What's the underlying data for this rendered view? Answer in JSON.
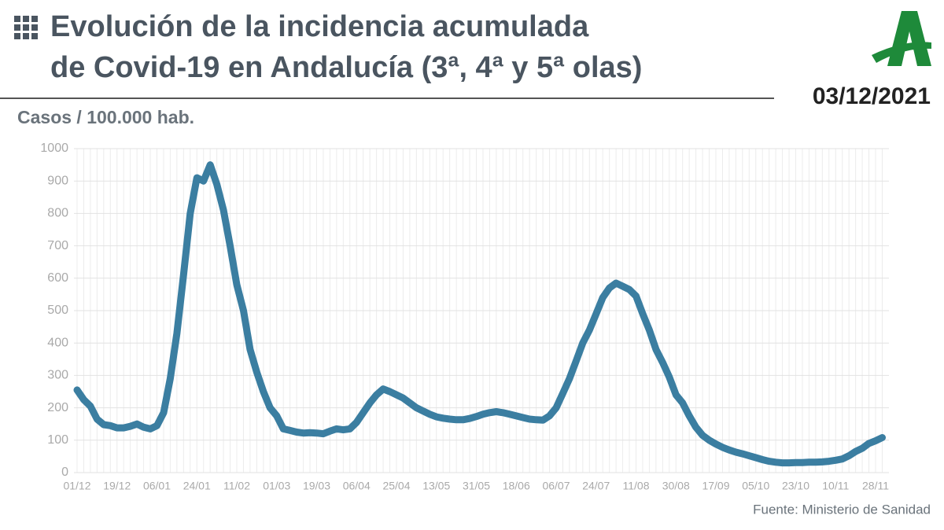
{
  "chart_data": {
    "type": "line",
    "title": [
      "Evolución de la incidencia acumulada",
      "de Covid-19 en Andalucía (3ª, 4ª y 5ª olas)"
    ],
    "date": "03/12/2021",
    "y_label": "Casos / 100.000 hab.",
    "source": "Fuente: Ministerio de Sanidad",
    "color": "#3b7ea1",
    "grid": true,
    "ylim": [
      0,
      1000
    ],
    "yticks": [
      0,
      100,
      200,
      300,
      400,
      500,
      600,
      700,
      800,
      900,
      1000
    ],
    "categories": [
      "01/12",
      null,
      null,
      null,
      null,
      null,
      "19/12",
      null,
      null,
      null,
      null,
      null,
      "06/01",
      null,
      null,
      null,
      null,
      null,
      "24/01",
      null,
      null,
      null,
      null,
      null,
      "11/02",
      null,
      null,
      null,
      null,
      null,
      "01/03",
      null,
      null,
      null,
      null,
      null,
      "19/03",
      null,
      null,
      null,
      null,
      null,
      "06/04",
      null,
      null,
      null,
      null,
      null,
      "25/04",
      null,
      null,
      null,
      null,
      null,
      "13/05",
      null,
      null,
      null,
      null,
      null,
      "31/05",
      null,
      null,
      null,
      null,
      null,
      "18/06",
      null,
      null,
      null,
      null,
      null,
      "06/07",
      null,
      null,
      null,
      null,
      null,
      "24/07",
      null,
      null,
      null,
      null,
      null,
      "11/08",
      null,
      null,
      null,
      null,
      null,
      "30/08",
      null,
      null,
      null,
      null,
      null,
      "17/09",
      null,
      null,
      null,
      null,
      null,
      "05/10",
      null,
      null,
      null,
      null,
      null,
      "23/10",
      null,
      null,
      null,
      null,
      null,
      "10/11",
      null,
      null,
      null,
      null,
      null,
      "28/11",
      null
    ],
    "values": [
      255,
      225,
      205,
      165,
      148,
      145,
      138,
      138,
      143,
      150,
      140,
      135,
      145,
      185,
      290,
      430,
      610,
      800,
      910,
      900,
      950,
      890,
      810,
      700,
      580,
      500,
      380,
      310,
      250,
      200,
      175,
      135,
      130,
      125,
      122,
      123,
      122,
      120,
      128,
      135,
      132,
      135,
      155,
      185,
      215,
      240,
      258,
      250,
      240,
      230,
      215,
      200,
      190,
      180,
      172,
      168,
      165,
      163,
      163,
      167,
      173,
      180,
      185,
      188,
      185,
      180,
      175,
      170,
      165,
      163,
      162,
      175,
      200,
      245,
      290,
      345,
      400,
      440,
      490,
      540,
      570,
      585,
      575,
      565,
      545,
      490,
      440,
      380,
      340,
      295,
      240,
      215,
      175,
      140,
      115,
      100,
      88,
      78,
      70,
      63,
      58,
      52,
      46,
      40,
      35,
      32,
      30,
      30,
      31,
      31,
      32,
      32,
      33,
      35,
      38,
      42,
      52,
      65,
      75,
      90,
      98,
      108
    ]
  }
}
